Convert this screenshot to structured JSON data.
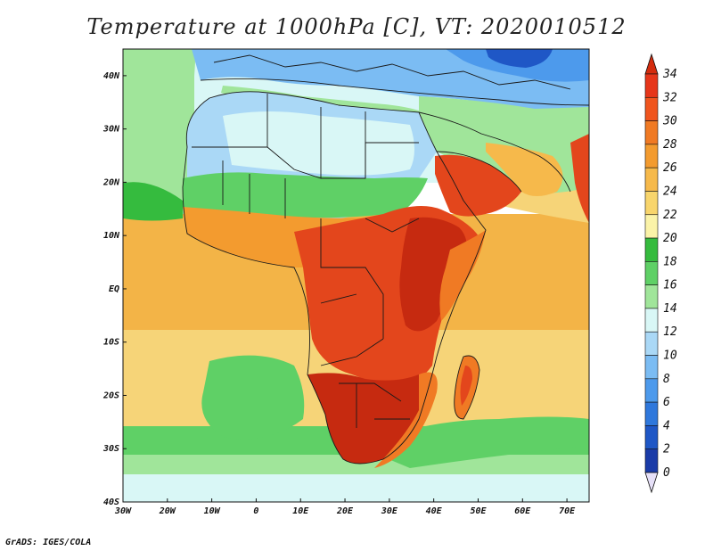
{
  "title": "Temperature at 1000hPa [C], VT: 2020010512",
  "credit": "GrADS: IGES/COLA",
  "colors": {
    "ocean_tropical": "#f3b447",
    "ocean_subtropical": "#f6d478",
    "ocean_mid": "#4fc65a",
    "ocean_cold": "#c8eef7",
    "land_hot": "#e3461c",
    "land_very_hot": "#c62a10",
    "land_warm": "#ee8b2c",
    "land_mild": "#9ce488",
    "land_cool": "#a9d5f4",
    "land_cold": "#5aa8ee"
  },
  "chart_data": {
    "type": "heatmap",
    "map": "Africa and surrounding ocean",
    "x_axis": {
      "range": [
        "30W",
        "75E"
      ],
      "ticks": [
        "30W",
        "20W",
        "10W",
        "0",
        "10E",
        "20E",
        "30E",
        "40E",
        "50E",
        "60E",
        "70E"
      ]
    },
    "y_axis": {
      "range": [
        "40S",
        "45N"
      ],
      "ticks": [
        "40N",
        "30N",
        "20N",
        "10N",
        "EQ",
        "10S",
        "20S",
        "30S",
        "40S"
      ]
    },
    "colorbar": {
      "levels": [
        34,
        32,
        30,
        28,
        26,
        24,
        22,
        20,
        18,
        16,
        14,
        12,
        10,
        8,
        6,
        4,
        2,
        0
      ],
      "colors": [
        "#e6361a",
        "#f0551e",
        "#f07a24",
        "#f39b2f",
        "#f6b94b",
        "#f8d56c",
        "#fbf3a8",
        "#35bb3e",
        "#5fd066",
        "#a0e59a",
        "#d9f7f6",
        "#aad8f6",
        "#7bbcf3",
        "#4d9aec",
        "#2f78dc",
        "#1f57c6",
        "#1a3ba8",
        "#1a1f7a"
      ],
      "over_color": "#d42c0e",
      "under_color": "#e6e0f8"
    }
  }
}
